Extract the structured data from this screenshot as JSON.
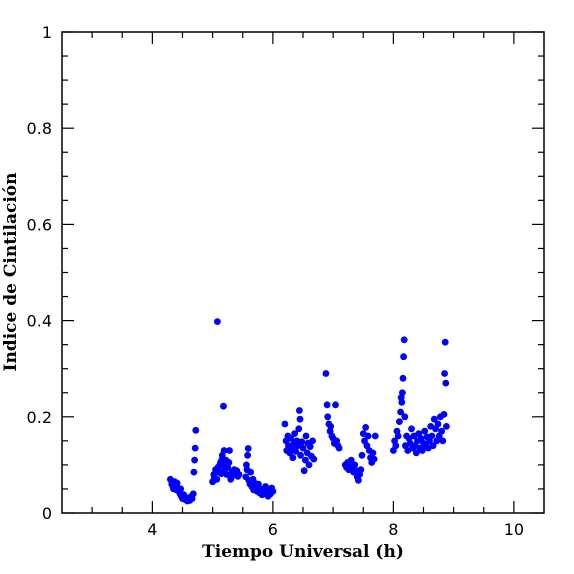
{
  "chart_data": {
    "type": "scatter",
    "title": "",
    "xlabel": "Tiempo Universal (h)",
    "ylabel": "Indice de Cintilación",
    "xlim": [
      2.5,
      10.5
    ],
    "ylim": [
      0,
      1
    ],
    "x_ticks": [
      4,
      6,
      8,
      10
    ],
    "y_ticks": [
      0,
      0.2,
      0.4,
      0.6,
      0.8,
      1
    ],
    "y_tick_labels": [
      "0",
      "0.2",
      "0.4",
      "0.6",
      "0.8",
      "1"
    ],
    "grid": false,
    "legend": "none",
    "marker_color": "#0000ff",
    "points": [
      [
        4.3,
        0.07
      ],
      [
        4.32,
        0.06
      ],
      [
        4.34,
        0.055
      ],
      [
        4.35,
        0.05
      ],
      [
        4.37,
        0.065
      ],
      [
        4.38,
        0.058
      ],
      [
        4.4,
        0.048
      ],
      [
        4.41,
        0.062
      ],
      [
        4.43,
        0.052
      ],
      [
        4.44,
        0.045
      ],
      [
        4.46,
        0.04
      ],
      [
        4.47,
        0.05
      ],
      [
        4.48,
        0.035
      ],
      [
        4.5,
        0.03
      ],
      [
        4.52,
        0.038
      ],
      [
        4.54,
        0.028
      ],
      [
        4.56,
        0.032
      ],
      [
        4.58,
        0.025
      ],
      [
        4.6,
        0.03
      ],
      [
        4.62,
        0.026
      ],
      [
        4.64,
        0.034
      ],
      [
        4.66,
        0.03
      ],
      [
        4.68,
        0.04
      ],
      [
        4.69,
        0.085
      ],
      [
        4.7,
        0.11
      ],
      [
        4.71,
        0.135
      ],
      [
        4.72,
        0.172
      ],
      [
        5.0,
        0.065
      ],
      [
        5.02,
        0.08
      ],
      [
        5.03,
        0.075
      ],
      [
        5.05,
        0.09
      ],
      [
        5.06,
        0.085
      ],
      [
        5.07,
        0.07
      ],
      [
        5.08,
        0.398
      ],
      [
        5.09,
        0.095
      ],
      [
        5.1,
        0.088
      ],
      [
        5.12,
        0.1
      ],
      [
        5.13,
        0.105
      ],
      [
        5.14,
        0.082
      ],
      [
        5.15,
        0.11
      ],
      [
        5.16,
        0.12
      ],
      [
        5.17,
        0.1
      ],
      [
        5.18,
        0.222
      ],
      [
        5.19,
        0.13
      ],
      [
        5.2,
        0.09
      ],
      [
        5.22,
        0.11
      ],
      [
        5.23,
        0.08
      ],
      [
        5.25,
        0.095
      ],
      [
        5.27,
        0.105
      ],
      [
        5.28,
        0.13
      ],
      [
        5.3,
        0.07
      ],
      [
        5.32,
        0.085
      ],
      [
        5.34,
        0.078
      ],
      [
        5.36,
        0.09
      ],
      [
        5.38,
        0.082
      ],
      [
        5.4,
        0.088
      ],
      [
        5.42,
        0.076
      ],
      [
        5.44,
        0.08
      ],
      [
        5.55,
        0.075
      ],
      [
        5.56,
        0.1
      ],
      [
        5.57,
        0.09
      ],
      [
        5.58,
        0.12
      ],
      [
        5.59,
        0.134
      ],
      [
        5.6,
        0.068
      ],
      [
        5.62,
        0.06
      ],
      [
        5.63,
        0.085
      ],
      [
        5.65,
        0.055
      ],
      [
        5.67,
        0.07
      ],
      [
        5.68,
        0.048
      ],
      [
        5.7,
        0.062
      ],
      [
        5.72,
        0.052
      ],
      [
        5.74,
        0.045
      ],
      [
        5.76,
        0.06
      ],
      [
        5.78,
        0.042
      ],
      [
        5.8,
        0.05
      ],
      [
        5.82,
        0.038
      ],
      [
        5.84,
        0.048
      ],
      [
        5.86,
        0.04
      ],
      [
        5.88,
        0.055
      ],
      [
        5.9,
        0.045
      ],
      [
        5.92,
        0.035
      ],
      [
        5.94,
        0.048
      ],
      [
        5.96,
        0.04
      ],
      [
        5.98,
        0.052
      ],
      [
        6.0,
        0.045
      ],
      [
        6.2,
        0.185
      ],
      [
        6.22,
        0.15
      ],
      [
        6.23,
        0.13
      ],
      [
        6.25,
        0.16
      ],
      [
        6.26,
        0.14
      ],
      [
        6.28,
        0.125
      ],
      [
        6.3,
        0.155
      ],
      [
        6.31,
        0.135
      ],
      [
        6.33,
        0.115
      ],
      [
        6.35,
        0.145
      ],
      [
        6.36,
        0.165
      ],
      [
        6.38,
        0.128
      ],
      [
        6.4,
        0.15
      ],
      [
        6.41,
        0.14
      ],
      [
        6.43,
        0.175
      ],
      [
        6.44,
        0.213
      ],
      [
        6.45,
        0.195
      ],
      [
        6.46,
        0.12
      ],
      [
        6.48,
        0.148
      ],
      [
        6.5,
        0.135
      ],
      [
        6.52,
        0.088
      ],
      [
        6.54,
        0.11
      ],
      [
        6.55,
        0.16
      ],
      [
        6.57,
        0.125
      ],
      [
        6.58,
        0.145
      ],
      [
        6.6,
        0.1
      ],
      [
        6.62,
        0.138
      ],
      [
        6.64,
        0.118
      ],
      [
        6.66,
        0.15
      ],
      [
        6.68,
        0.112
      ],
      [
        6.88,
        0.29
      ],
      [
        6.9,
        0.225
      ],
      [
        6.91,
        0.2
      ],
      [
        6.93,
        0.185
      ],
      [
        6.95,
        0.17
      ],
      [
        6.96,
        0.18
      ],
      [
        6.98,
        0.16
      ],
      [
        7.0,
        0.155
      ],
      [
        7.02,
        0.145
      ],
      [
        7.04,
        0.225
      ],
      [
        7.06,
        0.15
      ],
      [
        7.08,
        0.14
      ],
      [
        7.1,
        0.135
      ],
      [
        7.2,
        0.1
      ],
      [
        7.22,
        0.095
      ],
      [
        7.24,
        0.105
      ],
      [
        7.26,
        0.09
      ],
      [
        7.28,
        0.098
      ],
      [
        7.3,
        0.11
      ],
      [
        7.32,
        0.092
      ],
      [
        7.34,
        0.085
      ],
      [
        7.36,
        0.1
      ],
      [
        7.38,
        0.088
      ],
      [
        7.4,
        0.075
      ],
      [
        7.42,
        0.068
      ],
      [
        7.44,
        0.08
      ],
      [
        7.46,
        0.09
      ],
      [
        7.48,
        0.12
      ],
      [
        7.5,
        0.165
      ],
      [
        7.52,
        0.15
      ],
      [
        7.54,
        0.178
      ],
      [
        7.56,
        0.14
      ],
      [
        7.58,
        0.16
      ],
      [
        7.6,
        0.13
      ],
      [
        7.62,
        0.115
      ],
      [
        7.64,
        0.105
      ],
      [
        7.66,
        0.125
      ],
      [
        7.68,
        0.112
      ],
      [
        7.7,
        0.16
      ],
      [
        8.0,
        0.13
      ],
      [
        8.02,
        0.15
      ],
      [
        8.04,
        0.14
      ],
      [
        8.06,
        0.17
      ],
      [
        8.08,
        0.16
      ],
      [
        8.1,
        0.19
      ],
      [
        8.12,
        0.21
      ],
      [
        8.13,
        0.24
      ],
      [
        8.14,
        0.23
      ],
      [
        8.15,
        0.25
      ],
      [
        8.16,
        0.28
      ],
      [
        8.17,
        0.325
      ],
      [
        8.18,
        0.36
      ],
      [
        8.19,
        0.2
      ],
      [
        8.2,
        0.14
      ],
      [
        8.22,
        0.16
      ],
      [
        8.24,
        0.13
      ],
      [
        8.26,
        0.155
      ],
      [
        8.28,
        0.145
      ],
      [
        8.3,
        0.175
      ],
      [
        8.32,
        0.135
      ],
      [
        8.34,
        0.16
      ],
      [
        8.36,
        0.14
      ],
      [
        8.38,
        0.125
      ],
      [
        8.4,
        0.15
      ],
      [
        8.42,
        0.165
      ],
      [
        8.44,
        0.135
      ],
      [
        8.46,
        0.155
      ],
      [
        8.48,
        0.13
      ],
      [
        8.5,
        0.145
      ],
      [
        8.52,
        0.17
      ],
      [
        8.54,
        0.14
      ],
      [
        8.56,
        0.158
      ],
      [
        8.58,
        0.135
      ],
      [
        8.6,
        0.15
      ],
      [
        8.62,
        0.18
      ],
      [
        8.64,
        0.16
      ],
      [
        8.66,
        0.14
      ],
      [
        8.68,
        0.195
      ],
      [
        8.7,
        0.175
      ],
      [
        8.72,
        0.15
      ],
      [
        8.74,
        0.185
      ],
      [
        8.76,
        0.16
      ],
      [
        8.78,
        0.2
      ],
      [
        8.8,
        0.17
      ],
      [
        8.82,
        0.15
      ],
      [
        8.84,
        0.205
      ],
      [
        8.85,
        0.29
      ],
      [
        8.86,
        0.355
      ],
      [
        8.87,
        0.27
      ],
      [
        8.88,
        0.18
      ]
    ]
  }
}
